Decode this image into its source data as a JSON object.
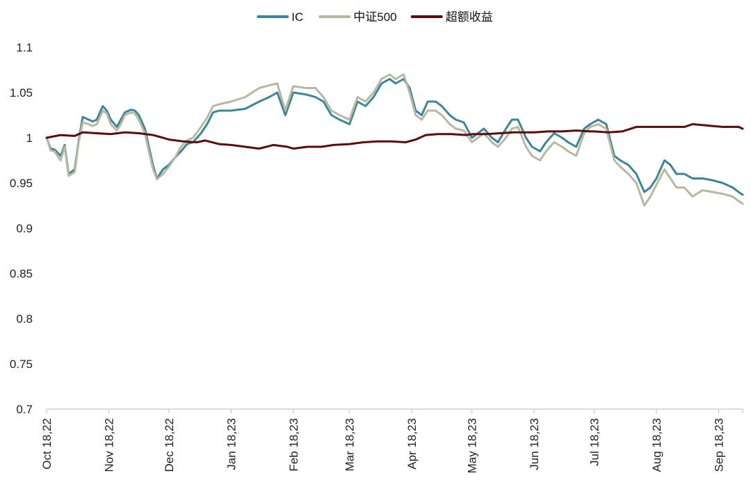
{
  "chart_data": {
    "type": "line",
    "title": "",
    "xlabel": "",
    "ylabel": "",
    "x_start": "Oct 18,22",
    "x_end": "Sep 30,23",
    "xticks": [
      "Oct 18,22",
      "Nov 18,22",
      "Dec 18,22",
      "Jan 18,23",
      "Feb 18,23",
      "Mar 18,23",
      "Apr 18,23",
      "May 18,23",
      "Jun 18,23",
      "Jul 18,23",
      "Aug 18,23",
      "Sep 18,23"
    ],
    "ylim": [
      0.7,
      1.1
    ],
    "yticks": [
      "0.7",
      "0.75",
      "0.8",
      "0.85",
      "0.9",
      "0.95",
      "1",
      "1.05",
      "1.1"
    ],
    "legend_position": "top-center",
    "series": [
      {
        "name": "IC",
        "color": "#3d8599",
        "points": [
          [
            "Oct 18,22",
            1.0
          ],
          [
            "Oct 20,22",
            0.988
          ],
          [
            "Oct 22,22",
            0.987
          ],
          [
            "Oct 25,22",
            0.98
          ],
          [
            "Oct 27,22",
            0.992
          ],
          [
            "Oct 29,22",
            0.96
          ],
          [
            "Nov 01,22",
            0.965
          ],
          [
            "Nov 03,22",
            0.997
          ],
          [
            "Nov 05,22",
            1.023
          ],
          [
            "Nov 08,22",
            1.02
          ],
          [
            "Nov 10,22",
            1.018
          ],
          [
            "Nov 12,22",
            1.02
          ],
          [
            "Nov 15,22",
            1.035
          ],
          [
            "Nov 17,22",
            1.03
          ],
          [
            "Nov 19,22",
            1.02
          ],
          [
            "Nov 22,22",
            1.012
          ],
          [
            "Nov 24,22",
            1.02
          ],
          [
            "Nov 26,22",
            1.028
          ],
          [
            "Nov 29,22",
            1.031
          ],
          [
            "Dec 01,22",
            1.03
          ],
          [
            "Dec 03,22",
            1.025
          ],
          [
            "Dec 06,22",
            1.01
          ],
          [
            "Dec 08,22",
            0.99
          ],
          [
            "Dec 10,22",
            0.97
          ],
          [
            "Dec 12,22",
            0.955
          ],
          [
            "Dec 15,22",
            0.965
          ],
          [
            "Dec 18,22",
            0.97
          ],
          [
            "Dec 21,22",
            0.978
          ],
          [
            "Dec 24,22",
            0.985
          ],
          [
            "Dec 27,22",
            0.993
          ],
          [
            "Dec 30,22",
            0.995
          ],
          [
            "Jan 03,23",
            1.005
          ],
          [
            "Jan 06,23",
            1.015
          ],
          [
            "Jan 09,23",
            1.028
          ],
          [
            "Jan 12,23",
            1.03
          ],
          [
            "Jan 18,23",
            1.03
          ],
          [
            "Jan 25,23",
            1.032
          ],
          [
            "Feb 01,23",
            1.04
          ],
          [
            "Feb 06,23",
            1.045
          ],
          [
            "Feb 10,23",
            1.05
          ],
          [
            "Feb 14,23",
            1.025
          ],
          [
            "Feb 18,23",
            1.05
          ],
          [
            "Feb 24,23",
            1.048
          ],
          [
            "Mar 01,23",
            1.045
          ],
          [
            "Mar 05,23",
            1.04
          ],
          [
            "Mar 09,23",
            1.025
          ],
          [
            "Mar 13,23",
            1.02
          ],
          [
            "Mar 18,23",
            1.015
          ],
          [
            "Mar 22,23",
            1.04
          ],
          [
            "Mar 26,23",
            1.035
          ],
          [
            "Mar 30,23",
            1.045
          ],
          [
            "Apr 03,23",
            1.06
          ],
          [
            "Apr 07,23",
            1.065
          ],
          [
            "Apr 10,23",
            1.06
          ],
          [
            "Apr 14,23",
            1.065
          ],
          [
            "Apr 17,23",
            1.055
          ],
          [
            "Apr 20,23",
            1.03
          ],
          [
            "Apr 23,23",
            1.025
          ],
          [
            "Apr 26,23",
            1.04
          ],
          [
            "Apr 30,23",
            1.04
          ],
          [
            "May 03,23",
            1.035
          ],
          [
            "May 07,23",
            1.025
          ],
          [
            "May 10,23",
            1.02
          ],
          [
            "May 14,23",
            1.017
          ],
          [
            "May 18,23",
            1.0
          ],
          [
            "May 21,23",
            1.005
          ],
          [
            "May 24,23",
            1.01
          ],
          [
            "May 28,23",
            1.0
          ],
          [
            "May 31,23",
            0.995
          ],
          [
            "Jun 04,23",
            1.01
          ],
          [
            "Jun 07,23",
            1.02
          ],
          [
            "Jun 10,23",
            1.02
          ],
          [
            "Jun 14,23",
            1.0
          ],
          [
            "Jun 17,23",
            0.99
          ],
          [
            "Jun 21,23",
            0.985
          ],
          [
            "Jun 24,23",
            0.995
          ],
          [
            "Jun 28,23",
            1.005
          ],
          [
            "Jul 02,23",
            1.0
          ],
          [
            "Jul 05,23",
            0.995
          ],
          [
            "Jul 09,23",
            0.99
          ],
          [
            "Jul 13,23",
            1.01
          ],
          [
            "Jul 16,23",
            1.015
          ],
          [
            "Jul 20,23",
            1.02
          ],
          [
            "Jul 24,23",
            1.015
          ],
          [
            "Jul 28,23",
            0.98
          ],
          [
            "Jul 31,23",
            0.975
          ],
          [
            "Aug 04,23",
            0.97
          ],
          [
            "Aug 08,23",
            0.96
          ],
          [
            "Aug 12,23",
            0.94
          ],
          [
            "Aug 15,23",
            0.945
          ],
          [
            "Aug 18,23",
            0.955
          ],
          [
            "Aug 22,23",
            0.975
          ],
          [
            "Aug 25,23",
            0.97
          ],
          [
            "Aug 28,23",
            0.96
          ],
          [
            "Sep 01,23",
            0.96
          ],
          [
            "Sep 05,23",
            0.955
          ],
          [
            "Sep 10,23",
            0.955
          ],
          [
            "Sep 15,23",
            0.953
          ],
          [
            "Sep 20,23",
            0.95
          ],
          [
            "Sep 25,23",
            0.945
          ],
          [
            "Sep 28,23",
            0.94
          ],
          [
            "Sep 30,23",
            0.937
          ]
        ]
      },
      {
        "name": "中证500",
        "color": "#b7b7a2",
        "points": [
          [
            "Oct 18,22",
            1.0
          ],
          [
            "Oct 20,22",
            0.986
          ],
          [
            "Oct 22,22",
            0.985
          ],
          [
            "Oct 25,22",
            0.975
          ],
          [
            "Oct 27,22",
            0.99
          ],
          [
            "Oct 29,22",
            0.958
          ],
          [
            "Nov 01,22",
            0.962
          ],
          [
            "Nov 03,22",
            0.995
          ],
          [
            "Nov 05,22",
            1.017
          ],
          [
            "Nov 08,22",
            1.015
          ],
          [
            "Nov 10,22",
            1.013
          ],
          [
            "Nov 12,22",
            1.015
          ],
          [
            "Nov 15,22",
            1.03
          ],
          [
            "Nov 17,22",
            1.027
          ],
          [
            "Nov 19,22",
            1.015
          ],
          [
            "Nov 22,22",
            1.008
          ],
          [
            "Nov 24,22",
            1.015
          ],
          [
            "Nov 26,22",
            1.025
          ],
          [
            "Nov 29,22",
            1.028
          ],
          [
            "Dec 01,22",
            1.027
          ],
          [
            "Dec 03,22",
            1.02
          ],
          [
            "Dec 06,22",
            1.005
          ],
          [
            "Dec 08,22",
            0.985
          ],
          [
            "Dec 10,22",
            0.966
          ],
          [
            "Dec 12,22",
            0.954
          ],
          [
            "Dec 15,22",
            0.96
          ],
          [
            "Dec 18,22",
            0.968
          ],
          [
            "Dec 21,22",
            0.978
          ],
          [
            "Dec 24,22",
            0.99
          ],
          [
            "Dec 27,22",
            0.997
          ],
          [
            "Dec 30,22",
            1.0
          ],
          [
            "Jan 03,23",
            1.012
          ],
          [
            "Jan 06,23",
            1.022
          ],
          [
            "Jan 09,23",
            1.035
          ],
          [
            "Jan 12,23",
            1.037
          ],
          [
            "Jan 18,23",
            1.04
          ],
          [
            "Jan 25,23",
            1.045
          ],
          [
            "Feb 01,23",
            1.055
          ],
          [
            "Feb 06,23",
            1.058
          ],
          [
            "Feb 10,23",
            1.06
          ],
          [
            "Feb 14,23",
            1.03
          ],
          [
            "Feb 18,23",
            1.057
          ],
          [
            "Feb 24,23",
            1.055
          ],
          [
            "Mar 01,23",
            1.055
          ],
          [
            "Mar 05,23",
            1.045
          ],
          [
            "Mar 09,23",
            1.03
          ],
          [
            "Mar 13,23",
            1.025
          ],
          [
            "Mar 18,23",
            1.02
          ],
          [
            "Mar 22,23",
            1.045
          ],
          [
            "Mar 26,23",
            1.04
          ],
          [
            "Mar 30,23",
            1.05
          ],
          [
            "Apr 03,23",
            1.065
          ],
          [
            "Apr 07,23",
            1.07
          ],
          [
            "Apr 10,23",
            1.065
          ],
          [
            "Apr 14,23",
            1.07
          ],
          [
            "Apr 17,23",
            1.05
          ],
          [
            "Apr 20,23",
            1.025
          ],
          [
            "Apr 23,23",
            1.02
          ],
          [
            "Apr 26,23",
            1.03
          ],
          [
            "Apr 30,23",
            1.03
          ],
          [
            "May 03,23",
            1.025
          ],
          [
            "May 07,23",
            1.015
          ],
          [
            "May 10,23",
            1.01
          ],
          [
            "May 14,23",
            1.008
          ],
          [
            "May 18,23",
            0.995
          ],
          [
            "May 21,23",
            1.0
          ],
          [
            "May 24,23",
            1.005
          ],
          [
            "May 28,23",
            0.995
          ],
          [
            "May 31,23",
            0.99
          ],
          [
            "Jun 04,23",
            1.0
          ],
          [
            "Jun 07,23",
            1.01
          ],
          [
            "Jun 10,23",
            1.012
          ],
          [
            "Jun 14,23",
            0.99
          ],
          [
            "Jun 17,23",
            0.98
          ],
          [
            "Jun 21,23",
            0.975
          ],
          [
            "Jun 24,23",
            0.985
          ],
          [
            "Jun 28,23",
            0.995
          ],
          [
            "Jul 02,23",
            0.99
          ],
          [
            "Jul 05,23",
            0.985
          ],
          [
            "Jul 09,23",
            0.98
          ],
          [
            "Jul 13,23",
            1.005
          ],
          [
            "Jul 16,23",
            1.012
          ],
          [
            "Jul 20,23",
            1.015
          ],
          [
            "Jul 24,23",
            1.01
          ],
          [
            "Jul 28,23",
            0.975
          ],
          [
            "Jul 31,23",
            0.968
          ],
          [
            "Aug 04,23",
            0.96
          ],
          [
            "Aug 08,23",
            0.95
          ],
          [
            "Aug 12,23",
            0.925
          ],
          [
            "Aug 15,23",
            0.935
          ],
          [
            "Aug 18,23",
            0.948
          ],
          [
            "Aug 22,23",
            0.965
          ],
          [
            "Aug 25,23",
            0.955
          ],
          [
            "Aug 28,23",
            0.945
          ],
          [
            "Sep 01,23",
            0.945
          ],
          [
            "Sep 05,23",
            0.935
          ],
          [
            "Sep 10,23",
            0.942
          ],
          [
            "Sep 15,23",
            0.94
          ],
          [
            "Sep 20,23",
            0.938
          ],
          [
            "Sep 25,23",
            0.935
          ],
          [
            "Sep 28,23",
            0.93
          ],
          [
            "Sep 30,23",
            0.927
          ]
        ]
      },
      {
        "name": "超额收益",
        "color": "#5c0a0a",
        "points": [
          [
            "Oct 18,22",
            1.0
          ],
          [
            "Oct 25,22",
            1.003
          ],
          [
            "Nov 01,22",
            1.002
          ],
          [
            "Nov 05,22",
            1.006
          ],
          [
            "Nov 12,22",
            1.005
          ],
          [
            "Nov 19,22",
            1.004
          ],
          [
            "Nov 26,22",
            1.006
          ],
          [
            "Dec 03,22",
            1.005
          ],
          [
            "Dec 10,22",
            1.003
          ],
          [
            "Dec 15,22",
            1.0
          ],
          [
            "Dec 18,22",
            0.998
          ],
          [
            "Dec 25,22",
            0.996
          ],
          [
            "Jan 01,23",
            0.995
          ],
          [
            "Jan 05,23",
            0.997
          ],
          [
            "Jan 12,23",
            0.993
          ],
          [
            "Jan 18,23",
            0.992
          ],
          [
            "Jan 25,23",
            0.99
          ],
          [
            "Feb 01,23",
            0.988
          ],
          [
            "Feb 08,23",
            0.992
          ],
          [
            "Feb 15,23",
            0.99
          ],
          [
            "Feb 18,23",
            0.988
          ],
          [
            "Feb 25,23",
            0.99
          ],
          [
            "Mar 04,23",
            0.99
          ],
          [
            "Mar 10,23",
            0.992
          ],
          [
            "Mar 18,23",
            0.993
          ],
          [
            "Mar 25,23",
            0.995
          ],
          [
            "Apr 01,23",
            0.996
          ],
          [
            "Apr 08,23",
            0.996
          ],
          [
            "Apr 15,23",
            0.995
          ],
          [
            "Apr 20,23",
            0.998
          ],
          [
            "Apr 25,23",
            1.003
          ],
          [
            "May 01,23",
            1.004
          ],
          [
            "May 08,23",
            1.004
          ],
          [
            "May 15,23",
            1.003
          ],
          [
            "May 18,23",
            1.004
          ],
          [
            "May 25,23",
            1.004
          ],
          [
            "Jun 01,23",
            1.005
          ],
          [
            "Jun 08,23",
            1.006
          ],
          [
            "Jun 15,23",
            1.006
          ],
          [
            "Jun 18,23",
            1.006
          ],
          [
            "Jun 25,23",
            1.007
          ],
          [
            "Jul 02,23",
            1.007
          ],
          [
            "Jul 09,23",
            1.008
          ],
          [
            "Jul 16,23",
            1.007
          ],
          [
            "Jul 18,23",
            1.007
          ],
          [
            "Jul 25,23",
            1.006
          ],
          [
            "Aug 01,23",
            1.007
          ],
          [
            "Aug 08,23",
            1.012
          ],
          [
            "Aug 15,23",
            1.012
          ],
          [
            "Aug 18,23",
            1.012
          ],
          [
            "Aug 25,23",
            1.012
          ],
          [
            "Sep 01,23",
            1.012
          ],
          [
            "Sep 05,23",
            1.015
          ],
          [
            "Sep 10,23",
            1.014
          ],
          [
            "Sep 15,23",
            1.013
          ],
          [
            "Sep 20,23",
            1.012
          ],
          [
            "Sep 25,23",
            1.012
          ],
          [
            "Sep 28,23",
            1.012
          ],
          [
            "Sep 30,23",
            1.01
          ]
        ]
      }
    ]
  }
}
